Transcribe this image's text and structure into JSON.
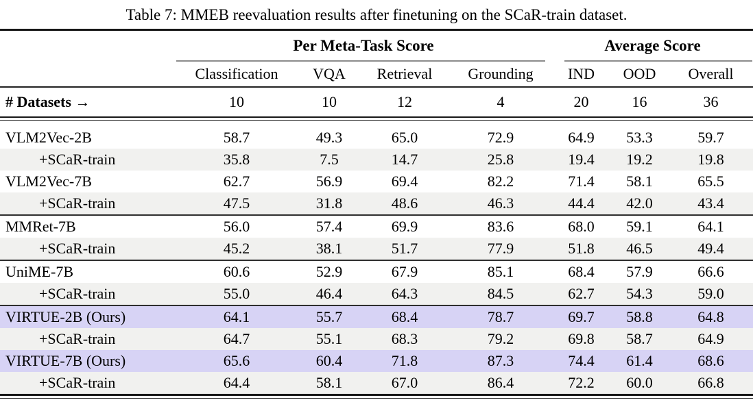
{
  "title": "Table 7: MMEB reevaluation results after finetuning on the SCaR-train dataset.",
  "colors": {
    "highlight_ours": "#d7d3f5",
    "row_shade": "#f1f1ef",
    "rule_dark": "#161616",
    "rule_gray": "#8c8c8c"
  },
  "chart_data": {
    "type": "table",
    "title": "Table 7: MMEB reevaluation results after finetuning on the SCaR-train dataset.",
    "column_groups": [
      "Per Meta-Task Score",
      "Average Score"
    ],
    "columns": [
      "Classification",
      "VQA",
      "Retrieval",
      "Grounding",
      "IND",
      "OOD",
      "Overall"
    ],
    "num_datasets": [
      10,
      10,
      12,
      4,
      20,
      16,
      36
    ],
    "rows_summary": "12 model rows, values match table.rows below"
  },
  "table": {
    "group_headers": [
      {
        "label": "Per Meta-Task Score",
        "span": 4
      },
      {
        "label": "Average Score",
        "span": 3
      }
    ],
    "columns": [
      "Classification",
      "VQA",
      "Retrieval",
      "Grounding",
      "IND",
      "OOD",
      "Overall"
    ],
    "datasets_row": {
      "label": "# Datasets →",
      "values": [
        "10",
        "10",
        "12",
        "4",
        "20",
        "16",
        "36"
      ]
    },
    "rows": [
      {
        "label": "VLM2Vec-2B",
        "indent": false,
        "bg": "white",
        "rule_above": false,
        "values": [
          "58.7",
          "49.3",
          "65.0",
          "72.9",
          "64.9",
          "53.3",
          "59.7"
        ]
      },
      {
        "label": "+SCaR-train",
        "indent": true,
        "bg": "gray",
        "rule_above": false,
        "values": [
          "35.8",
          "7.5",
          "14.7",
          "25.8",
          "19.4",
          "19.2",
          "19.8"
        ]
      },
      {
        "label": "VLM2Vec-7B",
        "indent": false,
        "bg": "white",
        "rule_above": false,
        "values": [
          "62.7",
          "56.9",
          "69.4",
          "82.2",
          "71.4",
          "58.1",
          "65.5"
        ]
      },
      {
        "label": "+SCaR-train",
        "indent": true,
        "bg": "gray",
        "rule_above": false,
        "values": [
          "47.5",
          "31.8",
          "48.6",
          "46.3",
          "44.4",
          "42.0",
          "43.4"
        ]
      },
      {
        "label": "MMRet-7B",
        "indent": false,
        "bg": "white",
        "rule_above": true,
        "values": [
          "56.0",
          "57.4",
          "69.9",
          "83.6",
          "68.0",
          "59.1",
          "64.1"
        ]
      },
      {
        "label": "+SCaR-train",
        "indent": true,
        "bg": "gray",
        "rule_above": false,
        "values": [
          "45.2",
          "38.1",
          "51.7",
          "77.9",
          "51.8",
          "46.5",
          "49.4"
        ]
      },
      {
        "label": "UniME-7B",
        "indent": false,
        "bg": "white",
        "rule_above": true,
        "values": [
          "60.6",
          "52.9",
          "67.9",
          "85.1",
          "68.4",
          "57.9",
          "66.6"
        ]
      },
      {
        "label": "+SCaR-train",
        "indent": true,
        "bg": "gray",
        "rule_above": false,
        "values": [
          "55.0",
          "46.4",
          "64.3",
          "84.5",
          "62.7",
          "54.3",
          "59.0"
        ]
      },
      {
        "label": "VIRTUE-2B (Ours)",
        "indent": false,
        "bg": "lav",
        "rule_above": true,
        "values": [
          "64.1",
          "55.7",
          "68.4",
          "78.7",
          "69.7",
          "58.8",
          "64.8"
        ]
      },
      {
        "label": "+SCaR-train",
        "indent": true,
        "bg": "gray",
        "rule_above": false,
        "values": [
          "64.7",
          "55.1",
          "68.3",
          "79.2",
          "69.8",
          "58.7",
          "64.9"
        ]
      },
      {
        "label": "VIRTUE-7B (Ours)",
        "indent": false,
        "bg": "lav",
        "rule_above": false,
        "values": [
          "65.6",
          "60.4",
          "71.8",
          "87.3",
          "74.4",
          "61.4",
          "68.6"
        ]
      },
      {
        "label": "+SCaR-train",
        "indent": true,
        "bg": "gray",
        "rule_above": false,
        "values": [
          "64.4",
          "58.1",
          "67.0",
          "86.4",
          "72.2",
          "60.0",
          "66.8"
        ]
      }
    ]
  }
}
